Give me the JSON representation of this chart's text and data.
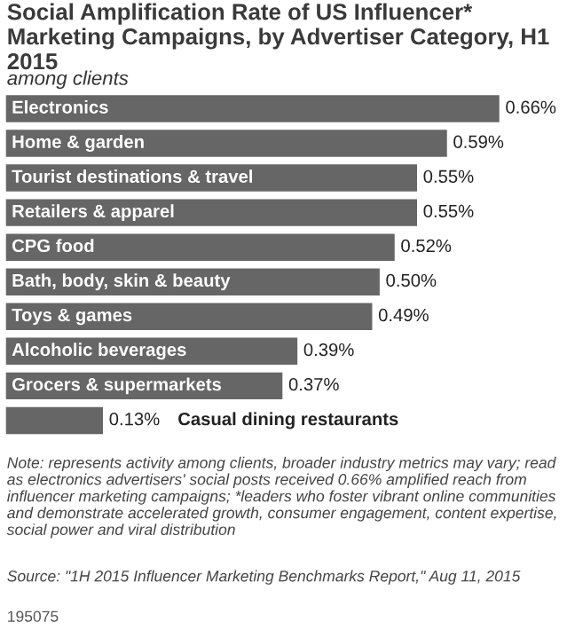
{
  "chart_data": {
    "type": "bar",
    "orientation": "horizontal",
    "title": "Social Amplification Rate of US Influencer* Marketing Campaigns, by Advertiser Category, H1 2015",
    "subtitle": "among clients",
    "categories": [
      "Electronics",
      "Home & garden",
      "Tourist destinations & travel",
      "Retailers & apparel",
      "CPG food",
      "Bath, body, skin & beauty",
      "Toys & games",
      "Alcoholic beverages",
      "Grocers & supermarkets",
      "Casual dining restaurants"
    ],
    "values": [
      0.66,
      0.59,
      0.55,
      0.55,
      0.52,
      0.5,
      0.49,
      0.39,
      0.37,
      0.13
    ],
    "value_labels": [
      "0.66%",
      "0.59%",
      "0.55%",
      "0.55%",
      "0.52%",
      "0.50%",
      "0.49%",
      "0.39%",
      "0.37%",
      "0.13%"
    ],
    "color": "#666666",
    "annotations": [
      "Note: represents activity among clients, broader industry metrics may vary; read as electronics advertisers' social posts received 0.66% amplified reach from influencer marketing campaigns; *leaders who foster vibrant online communities and demonstrate accelerated growth, consumer engagement, content expertise, social power and viral distribution",
      "Source: \"1H 2015 Influencer Marketing Benchmarks Report,\" Aug 11, 2015",
      "195075"
    ]
  }
}
